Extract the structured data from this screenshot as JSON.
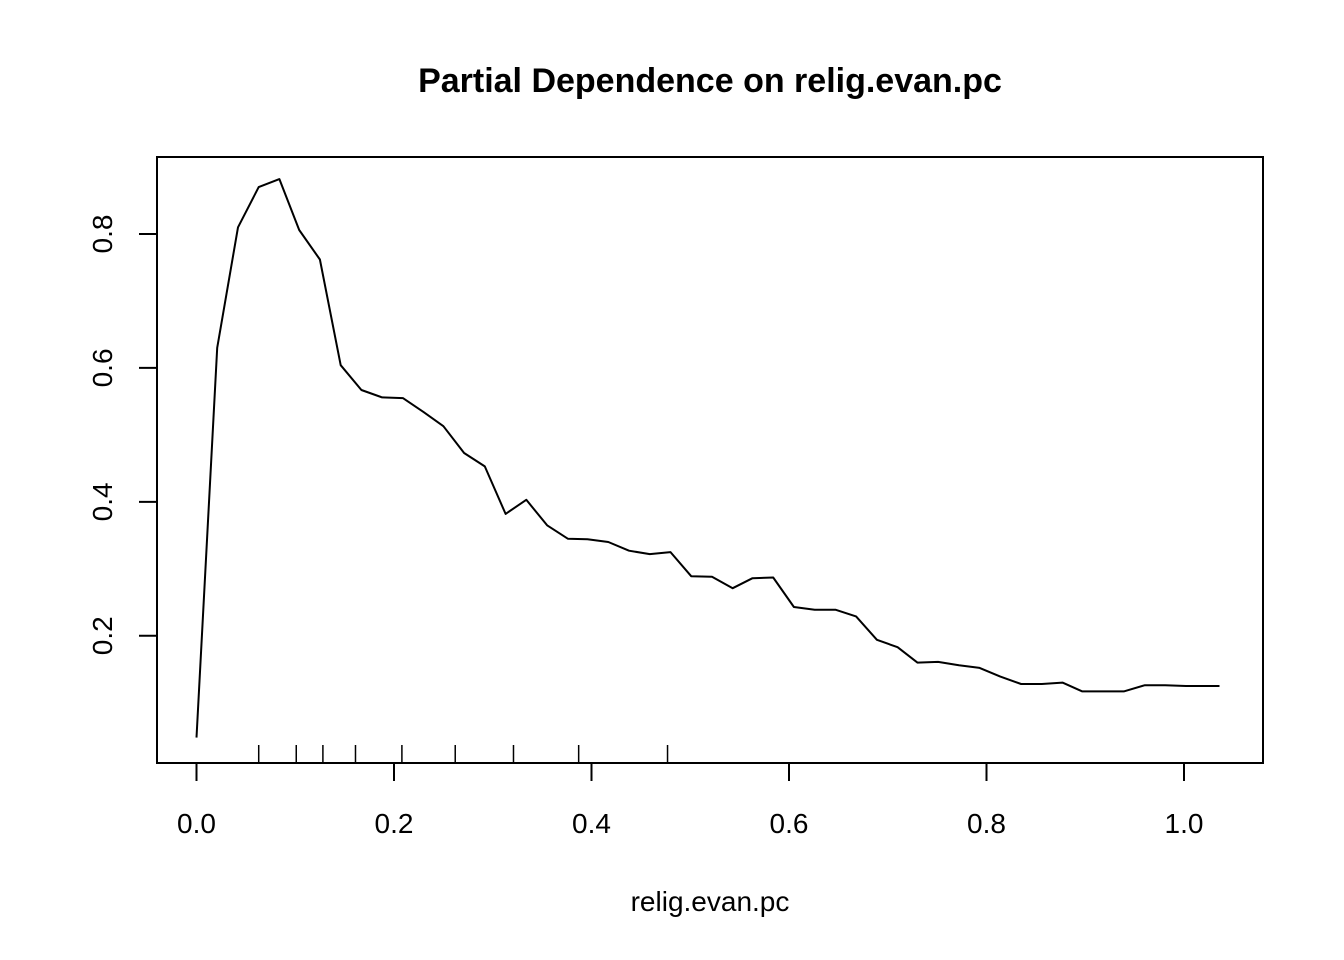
{
  "chart_data": {
    "type": "line",
    "title": "Partial Dependence on relig.evan.pc",
    "xlabel": "relig.evan.pc",
    "ylabel": "",
    "xlim": [
      -0.04,
      1.08
    ],
    "ylim": [
      0.01,
      0.915
    ],
    "x_ticks": [
      0.0,
      0.2,
      0.4,
      0.6,
      0.8,
      1.0
    ],
    "x_tick_labels": [
      "0.0",
      "0.2",
      "0.4",
      "0.6",
      "0.8",
      "1.0"
    ],
    "y_ticks": [
      0.2,
      0.4,
      0.6,
      0.8
    ],
    "y_tick_labels": [
      "0.2",
      "0.4",
      "0.6",
      "0.8"
    ],
    "grid": false,
    "legend": "none",
    "line_color": "#000000",
    "series": [
      {
        "x": [
          0.0,
          0.021,
          0.042,
          0.063,
          0.084,
          0.104,
          0.125,
          0.146,
          0.167,
          0.188,
          0.209,
          0.23,
          0.25,
          0.271,
          0.292,
          0.313,
          0.334,
          0.355,
          0.376,
          0.396,
          0.417,
          0.438,
          0.459,
          0.48,
          0.501,
          0.522,
          0.543,
          0.563,
          0.584,
          0.605,
          0.626,
          0.647,
          0.668,
          0.689,
          0.71,
          0.73,
          0.751,
          0.772,
          0.793,
          0.814,
          0.835,
          0.856,
          0.877,
          0.897,
          0.918,
          0.939,
          0.96,
          0.981,
          1.002,
          1.022,
          1.036
        ],
        "y": [
          0.048,
          0.63,
          0.81,
          0.87,
          0.882,
          0.806,
          0.762,
          0.604,
          0.567,
          0.556,
          0.555,
          0.534,
          0.513,
          0.473,
          0.453,
          0.382,
          0.403,
          0.365,
          0.345,
          0.344,
          0.34,
          0.327,
          0.322,
          0.325,
          0.289,
          0.288,
          0.271,
          0.286,
          0.287,
          0.243,
          0.239,
          0.239,
          0.229,
          0.194,
          0.183,
          0.16,
          0.161,
          0.156,
          0.152,
          0.139,
          0.128,
          0.128,
          0.13,
          0.117,
          0.117,
          0.117,
          0.126,
          0.126,
          0.125,
          0.125,
          0.125
        ]
      }
    ],
    "rug": [
      0.063,
      0.101,
      0.128,
      0.161,
      0.208,
      0.262,
      0.321,
      0.387,
      0.477
    ]
  }
}
